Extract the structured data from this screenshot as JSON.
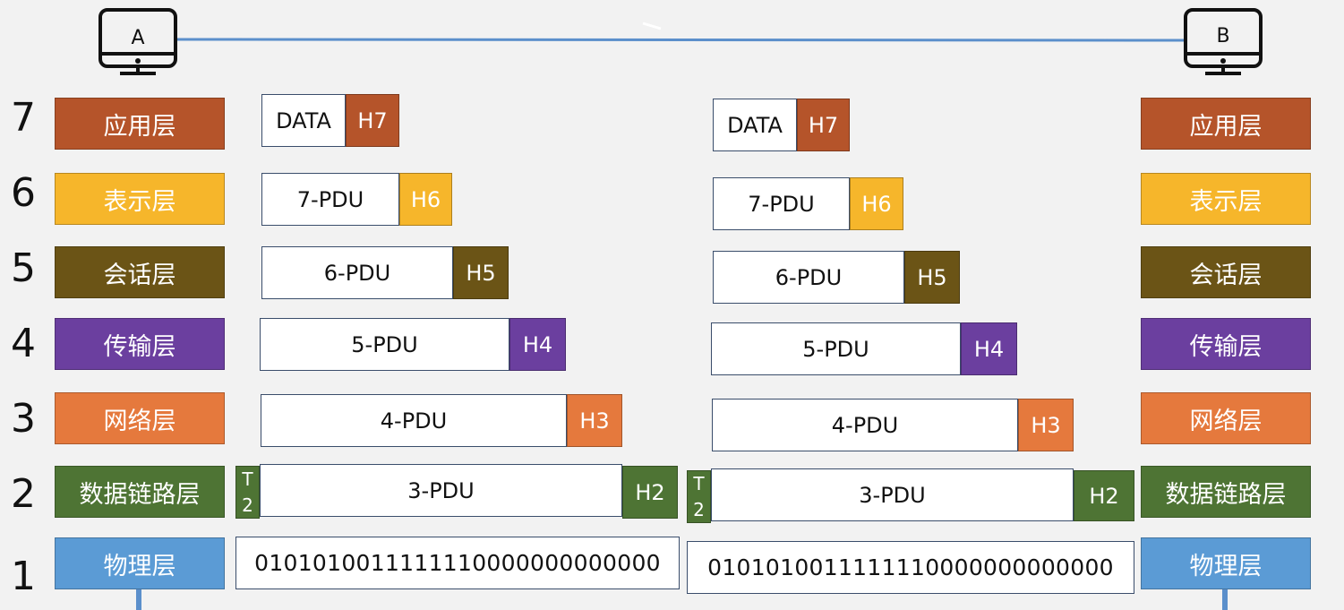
{
  "colors": {
    "application": "#b5542a",
    "presentation": "#f6b62b",
    "session": "#6b5416",
    "transport": "#6b3f9f",
    "network": "#e5793d",
    "datalink": "#4e7434",
    "physical": "#5b9bd5",
    "link_line": "#5b8fcb"
  },
  "hosts": {
    "a": {
      "label": "A",
      "icon": "computer-icon"
    },
    "b": {
      "label": "B",
      "icon": "computer-icon"
    }
  },
  "layers": [
    {
      "num": "7",
      "name": "应用层"
    },
    {
      "num": "6",
      "name": "表示层"
    },
    {
      "num": "5",
      "name": "会话层"
    },
    {
      "num": "4",
      "name": "传输层"
    },
    {
      "num": "3",
      "name": "网络层"
    },
    {
      "num": "2",
      "name": "数据链路层"
    },
    {
      "num": "1",
      "name": "物理层"
    }
  ],
  "units": {
    "l7": {
      "payload": "DATA",
      "header": "H7"
    },
    "l6": {
      "payload": "7-PDU",
      "header": "H6"
    },
    "l5": {
      "payload": "6-PDU",
      "header": "H5"
    },
    "l4": {
      "payload": "5-PDU",
      "header": "H4"
    },
    "l3": {
      "payload": "4-PDU",
      "header": "H3"
    },
    "l2": {
      "payload": "3-PDU",
      "header": "H2",
      "trailer_top": "T",
      "trailer_bottom": "2"
    },
    "l1": {
      "bits": "0101010011111110000000000000"
    }
  }
}
